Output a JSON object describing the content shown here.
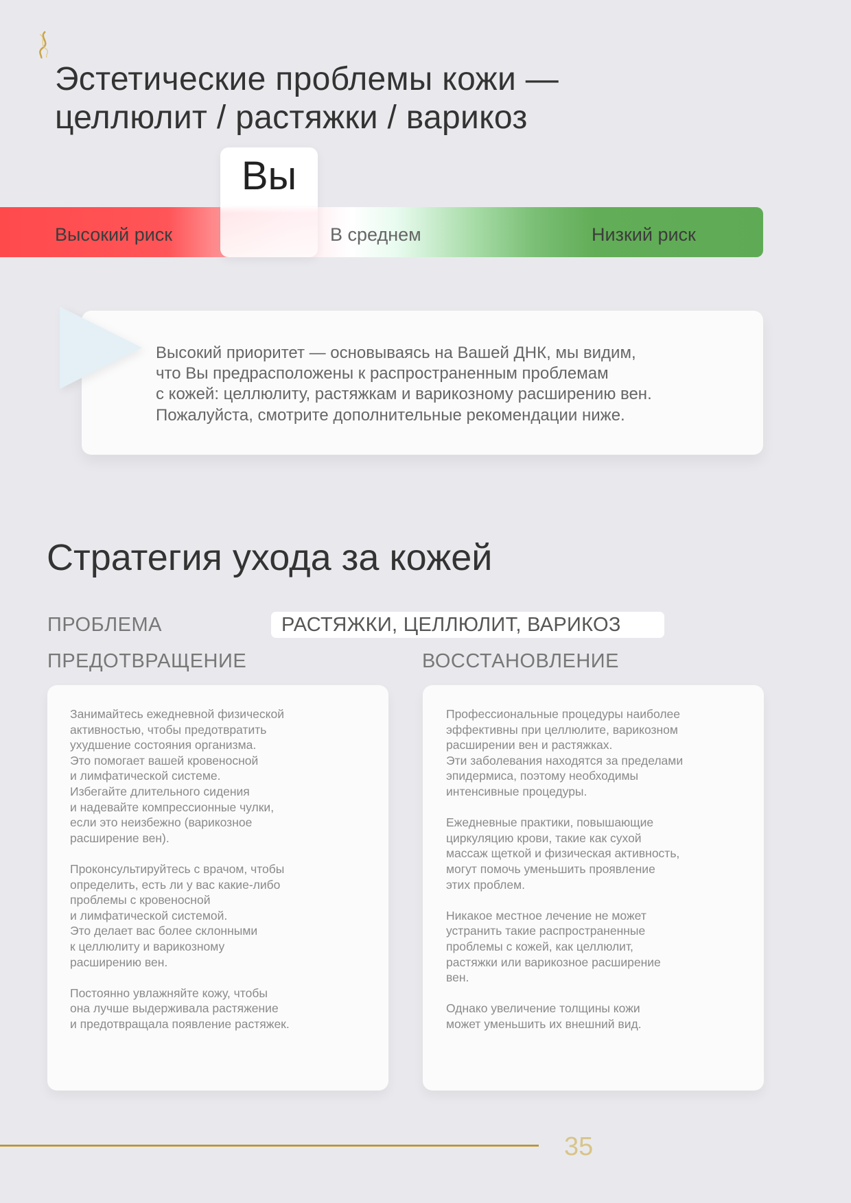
{
  "header": {
    "logo_icon": "dna-helix-logo-icon",
    "title_line1": "Эстетические проблемы кожи —",
    "title_line2": "целлюлит / растяжки / варикоз"
  },
  "risk_scale": {
    "you_label": "Вы",
    "high": "Высокий риск",
    "average": "В среднем",
    "low": "Низкий риск",
    "selected": "Высокий риск",
    "colors": {
      "high": "#ff4a4c",
      "low": "#5fab55"
    }
  },
  "callout": {
    "icon": "triangle-pointer-icon",
    "text": "Высокий приоритет — основываясь на Вашей ДНК, мы видим,\nчто Вы предрасположены к распространенным проблемам\nс кожей: целлюлиту, растяжкам и варикозному расширению вен.\nПожалуйста, смотрите дополнительные рекомендации ниже."
  },
  "strategy": {
    "title": "Стратегия ухода за кожей",
    "problem_label": "ПРОБЛЕМА",
    "problem_value": "РАСТЯЖКИ, ЦЕЛЛЮЛИТ, ВАРИКОЗ",
    "prevention_label": "ПРЕДОТВРАЩЕНИЕ",
    "recovery_label": "ВОССТАНОВЛЕНИЕ",
    "prevention_text": "Занимайтесь ежедневной физической\nактивностью, чтобы предотвратить\nухудшение состояния организма.\nЭто помогает вашей кровеносной\nи лимфатической системе.\nИзбегайте длительного сидения\nи надевайте компрессионные чулки,\nесли это неизбежно (варикозное\nрасширение вен).\n\nПроконсультируйтесь с врачом, чтобы\nопределить, есть ли у вас какие-либо\nпроблемы с кровеносной\nи лимфатической системой.\nЭто делает вас более склонными\nк целлюлиту и варикозному\nрасширению вен.\n\nПостоянно увлажняйте кожу, чтобы\nона лучше выдерживала растяжение\nи предотвращала появление растяжек.",
    "recovery_text": "Профессиональные процедуры наиболее\nэффективны при целлюлите, варикозном\nрасширении вен и растяжках.\nЭти заболевания находятся за пределами\nэпидермиса, поэтому необходимы\nинтенсивные процедуры.\n\nЕжедневные практики, повышающие\nциркуляцию крови, такие как сухой\nмассаж щеткой и физическая активность,\nмогут помочь уменьшить проявление\nэтих проблем.\n\nНикакое местное лечение не может\nустранить такие распространенные\nпроблемы с кожей, как целлюлит,\nрастяжки или варикозное расширение\nвен.\n\nОднако увеличение толщины кожи\nможет уменьшить их внешний вид."
  },
  "footer": {
    "page_number": "35",
    "accent_color": "#c9a548"
  }
}
